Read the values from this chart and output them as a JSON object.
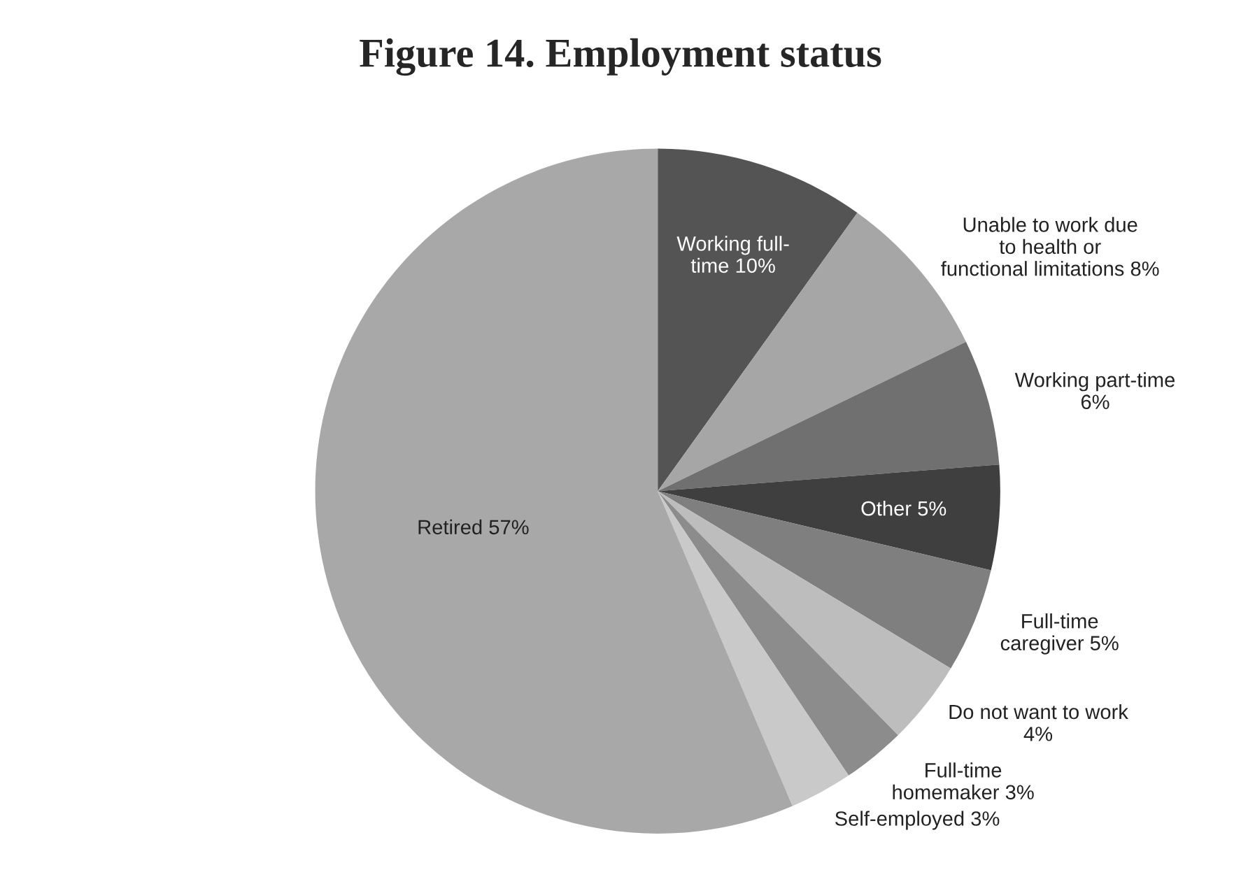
{
  "chart_data": {
    "type": "pie",
    "title": "Figure 14. Employment status",
    "categories": [
      "Working full-\ntime",
      "Unable to work due\nto health or\nfunctional limitations",
      "Working part-time",
      "Other",
      "Full-time\ncaregiver",
      "Do not want to work",
      "Full-time\nhomemaker",
      "Self-employed",
      "Retired"
    ],
    "values": [
      10,
      8,
      6,
      5,
      5,
      4,
      3,
      3,
      57
    ],
    "value_labels": [
      "10%",
      "8%",
      "6%",
      "5%",
      "5%",
      "4%",
      "3%",
      "3%",
      "57%"
    ],
    "colors": [
      "#545454",
      "#a6a6a6",
      "#707070",
      "#3f3f3f",
      "#7f7f7f",
      "#bdbdbd",
      "#8c8c8c",
      "#c9c9c9",
      "#a8a8a8"
    ],
    "legend": false
  }
}
